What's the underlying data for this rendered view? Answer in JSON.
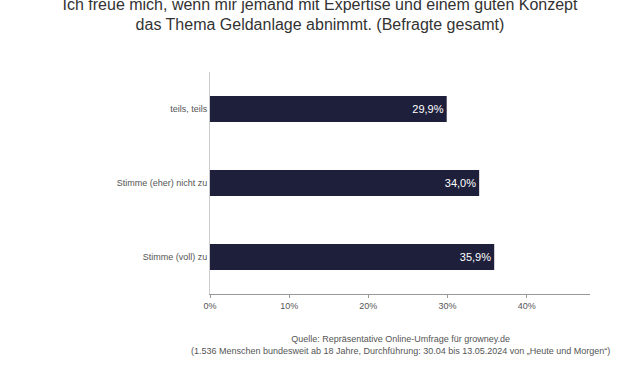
{
  "chart_data": {
    "type": "bar",
    "orientation": "horizontal",
    "title": "Ich freue mich, wenn mir jemand mit Expertise und einem guten Konzept\ndas Thema Geldanlage abnimmt. (Befragte gesamt)",
    "source": "Quelle: Repräsentative Online-Umfrage für growney.de\n(1.536 Menschen bundesweit ab 18 Jahre, Durchführung: 30.04 bis 13.05.2024 von „Heute und Morgen“)",
    "categories": [
      "teils, teils",
      "Stimme (eher) nicht zu",
      "Stimme (voll) zu"
    ],
    "values": [
      29.9,
      34.0,
      35.9
    ],
    "value_labels": [
      "29,9%",
      "34,0%",
      "35,9%"
    ],
    "data_labels": true,
    "color": "#1e1f3b",
    "xlim": [
      0,
      48
    ],
    "xticks": [
      {
        "value": 0,
        "label": "0%"
      },
      {
        "value": 10,
        "label": "10%"
      },
      {
        "value": 20,
        "label": "20%"
      },
      {
        "value": 30,
        "label": "30%"
      },
      {
        "value": 40,
        "label": "40%"
      }
    ],
    "grid": false
  }
}
